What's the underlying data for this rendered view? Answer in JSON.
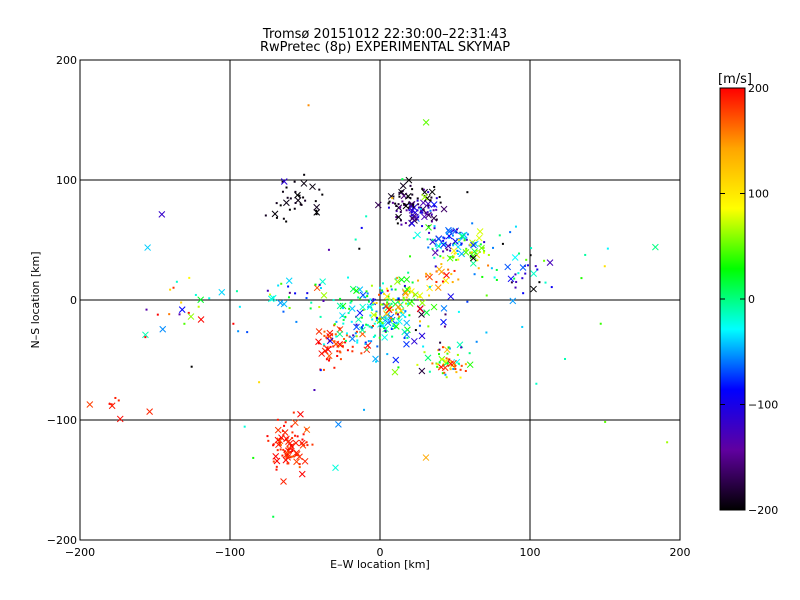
{
  "chart_data": {
    "type": "scatter",
    "title": "Tromsø 20151012 22:30:00–22:31:43",
    "subtitle": "RwPretec (8p) EXPERIMENTAL SKYMAP",
    "xlabel": "E–W location [km]",
    "ylabel": "N–S location [km]",
    "xlim": [
      -200,
      200
    ],
    "ylim": [
      -200,
      200
    ],
    "xticks": [
      -200,
      -100,
      0,
      100,
      200
    ],
    "yticks": [
      -200,
      -100,
      0,
      100,
      200
    ],
    "grid": true,
    "colorbar": {
      "label": "[m/s]",
      "min": -200,
      "max": 200,
      "ticks": [
        200,
        100,
        0,
        -100,
        -200
      ],
      "colors": [
        "#ff0000",
        "#ffa500",
        "#ffff00",
        "#00ff00",
        "#00ffff",
        "#0000ff",
        "#6000a0",
        "#000000"
      ]
    },
    "markers": [
      "cross",
      "dot"
    ],
    "clusters": [
      {
        "x": -60,
        "y": -122,
        "sx": 7,
        "sy": 9,
        "n": 90,
        "v": 190,
        "vs": 12
      },
      {
        "x": -30,
        "y": -38,
        "sx": 9,
        "sy": 8,
        "n": 55,
        "v": 185,
        "vs": 15
      },
      {
        "x": -5,
        "y": -15,
        "sx": 14,
        "sy": 14,
        "n": 140,
        "v": -20,
        "vs": 45
      },
      {
        "x": 10,
        "y": 0,
        "sx": 12,
        "sy": 10,
        "n": 70,
        "v": 60,
        "vs": 60
      },
      {
        "x": 40,
        "y": -52,
        "sx": 10,
        "sy": 7,
        "n": 40,
        "v": 60,
        "vs": 60
      },
      {
        "x": 50,
        "y": -55,
        "sx": 6,
        "sy": 5,
        "n": 12,
        "v": 180,
        "vs": 10
      },
      {
        "x": 25,
        "y": 75,
        "sx": 10,
        "sy": 8,
        "n": 85,
        "v": -150,
        "vs": 40
      },
      {
        "x": 48,
        "y": 50,
        "sx": 10,
        "sy": 8,
        "n": 70,
        "v": -50,
        "vs": 50
      },
      {
        "x": 60,
        "y": 40,
        "sx": 8,
        "sy": 8,
        "n": 30,
        "v": 70,
        "vs": 40
      },
      {
        "x": 90,
        "y": 25,
        "sx": 18,
        "sy": 12,
        "n": 45,
        "v": -60,
        "vs": 80
      },
      {
        "x": -55,
        "y": 80,
        "sx": 10,
        "sy": 10,
        "n": 35,
        "v": -195,
        "vs": 5
      },
      {
        "x": 20,
        "y": 85,
        "sx": 10,
        "sy": 6,
        "n": 25,
        "v": -195,
        "vs": 5
      },
      {
        "x": -60,
        "y": 0,
        "sx": 18,
        "sy": 10,
        "n": 30,
        "v": 0,
        "vs": 60
      },
      {
        "x": -135,
        "y": -5,
        "sx": 12,
        "sy": 14,
        "n": 20,
        "v": 50,
        "vs": 150
      },
      {
        "x": -180,
        "y": -85,
        "sx": 8,
        "sy": 8,
        "n": 8,
        "v": 190,
        "vs": 10
      },
      {
        "x": 40,
        "y": 20,
        "sx": 8,
        "sy": 5,
        "n": 20,
        "v": 150,
        "vs": 60
      },
      {
        "x": 30,
        "y": -20,
        "sx": 20,
        "sy": 15,
        "n": 25,
        "v": -120,
        "vs": 60
      },
      {
        "x": 0,
        "y": 0,
        "sx": 80,
        "sy": 70,
        "n": 60,
        "v": 0,
        "vs": 120
      }
    ]
  }
}
